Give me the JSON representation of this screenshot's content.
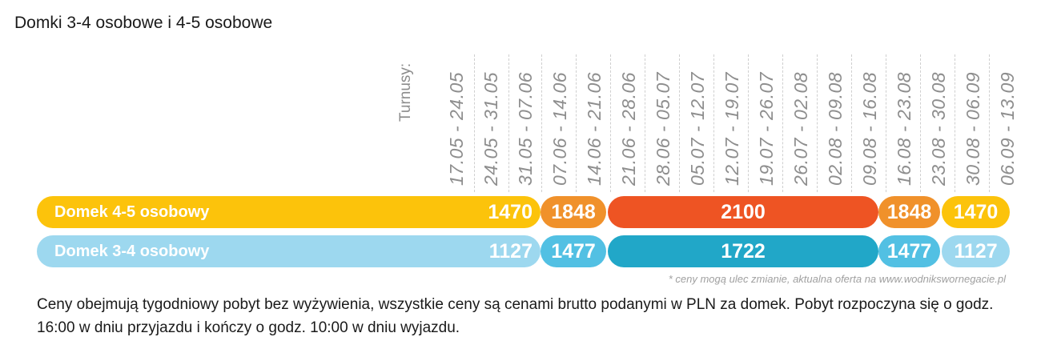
{
  "title": "Domki 3-4 osobowe i 4-5 osobowe",
  "turnusy_label": "Turnusy:",
  "periods": [
    "17.05 - 24.05",
    "24.05 - 31.05",
    "31.05 - 07.06",
    "07.06 - 14.06",
    "14.06 - 21.06",
    "21.06 - 28.06",
    "28.06 - 05.07",
    "05.07 - 12.07",
    "12.07 - 19.07",
    "19.07 - 26.07",
    "26.07 - 02.08",
    "02.08 - 09.08",
    "09.08 - 16.08",
    "16.08 - 23.08",
    "23.08 - 30.08",
    "30.08 - 06.09",
    "06.09 - 13.09"
  ],
  "rows": [
    {
      "label": "Domek 4-5 osobowy",
      "segments": [
        {
          "value": "1470",
          "color": "#fcc30b"
        },
        {
          "value": "1848",
          "color": "#f0912b"
        },
        {
          "value": "2100",
          "color": "#ee5423"
        },
        {
          "value": "1848",
          "color": "#f0912b"
        },
        {
          "value": "1470",
          "color": "#fcc30b"
        }
      ]
    },
    {
      "label": "Domek 3-4 osobowy",
      "segments": [
        {
          "value": "1127",
          "color": "#9dd8ef"
        },
        {
          "value": "1477",
          "color": "#52c0e3"
        },
        {
          "value": "1722",
          "color": "#21a7c8"
        },
        {
          "value": "1477",
          "color": "#52c0e3"
        },
        {
          "value": "1127",
          "color": "#9dd8ef"
        }
      ]
    }
  ],
  "note": "* ceny mogą ulec zmianie, aktualna oferta na www.wodnikswornegacie.pl",
  "description": "Ceny obejmują tygodniowy pobyt bez wyżywienia, wszystkie ceny są cenami brutto podanymi w PLN za domek. Pobyt rozpoczyna się o godz. 16:00 w dniu przyjazdu i kończy o godz. 10:00 w dniu wyjazdu."
}
